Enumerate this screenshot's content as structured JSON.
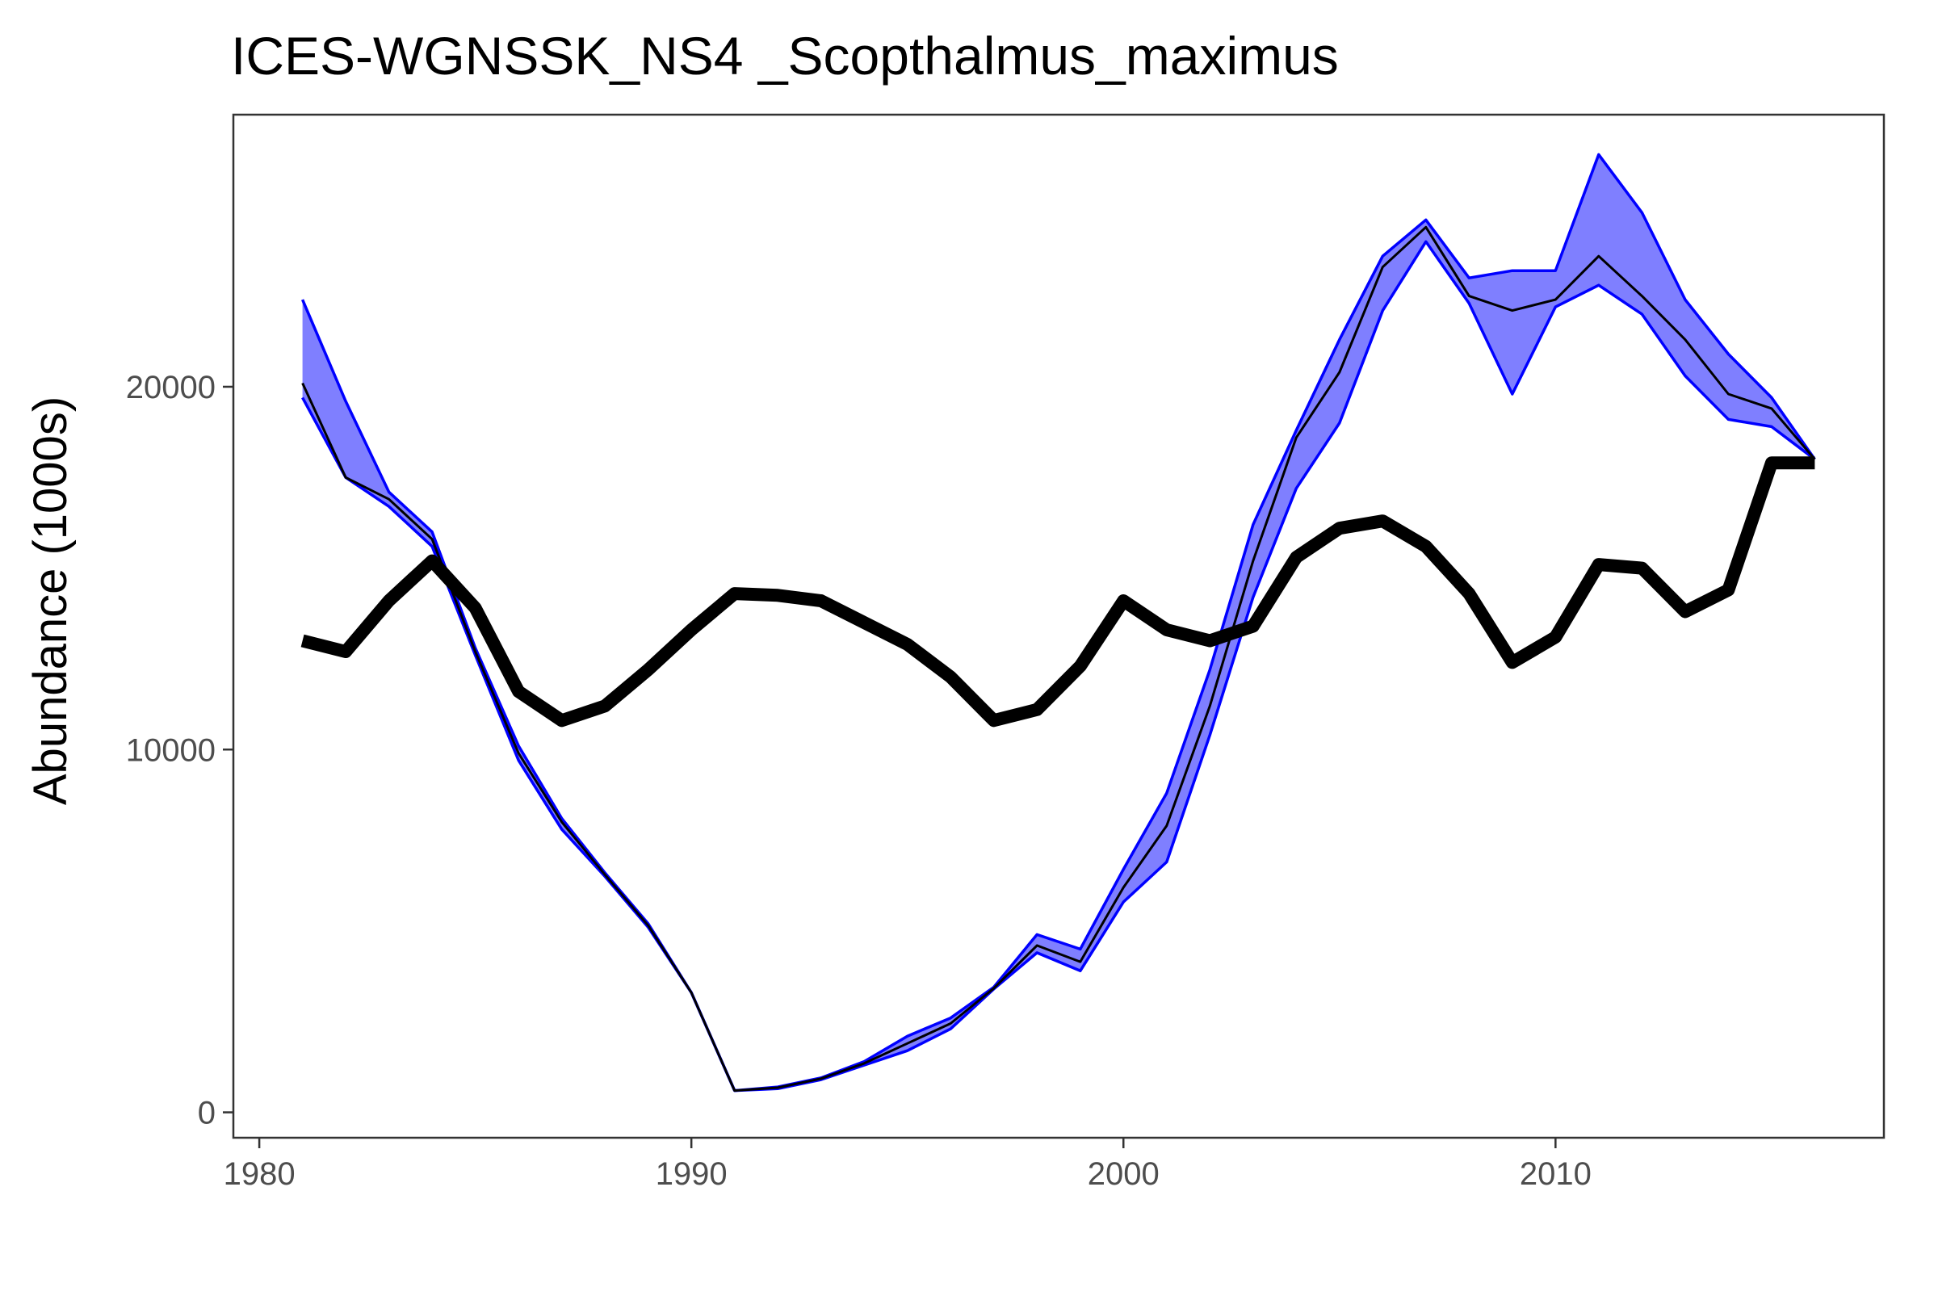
{
  "chart_data": {
    "type": "line",
    "title": "ICES-WGNSSK_NS4 _Scopthalmus_maximus",
    "xlabel": "",
    "ylabel": "Abundance (1000s)",
    "xlim": [
      1979.4,
      2017.6
    ],
    "ylim": [
      -700,
      27500
    ],
    "x_ticks": [
      "1980",
      "1990",
      "2000",
      "2010"
    ],
    "y_ticks": [
      "0",
      "10000",
      "20000"
    ],
    "grid": false,
    "legend": "none",
    "x": [
      1981,
      1982,
      1983,
      1984,
      1985,
      1986,
      1987,
      1988,
      1989,
      1990,
      1991,
      1992,
      1993,
      1994,
      1995,
      1996,
      1997,
      1998,
      1999,
      2000,
      2001,
      2002,
      2003,
      2004,
      2005,
      2006,
      2007,
      2008,
      2009,
      2010,
      2011,
      2012,
      2013,
      2014,
      2015,
      2016
    ],
    "band": {
      "fill_color": "#7f7fff",
      "edge_color": "#0000ff",
      "upper": [
        22400,
        19600,
        17100,
        16000,
        12800,
        10100,
        8100,
        6600,
        5200,
        3300,
        600,
        700,
        950,
        1400,
        2100,
        2600,
        3450,
        4900,
        4500,
        6700,
        8800,
        12200,
        16200,
        18800,
        21300,
        23600,
        24600,
        23000,
        23200,
        23200,
        26400,
        24800,
        22400,
        20900,
        19700,
        18000
      ],
      "lower": [
        19700,
        17500,
        16700,
        15600,
        12600,
        9700,
        7800,
        6500,
        5100,
        3300,
        600,
        650,
        900,
        1300,
        1700,
        2300,
        3400,
        4400,
        3900,
        5800,
        6900,
        10400,
        14200,
        17200,
        19000,
        22100,
        24000,
        22300,
        19800,
        22200,
        22800,
        22000,
        20300,
        19100,
        18900,
        18000
      ]
    },
    "series": [
      {
        "color": "#000000",
        "values": [
          20100,
          17500,
          16900,
          15800,
          12700,
          9900,
          8000,
          6550,
          5150,
          3300,
          600,
          680,
          930,
          1350,
          1900,
          2450,
          3420,
          4600,
          4150,
          6200,
          7900,
          11200,
          15200,
          18600,
          20400,
          23300,
          24400,
          22500,
          22100,
          22400,
          23600,
          22500,
          21300,
          19800,
          19400,
          18000
        ]
      },
      {
        "color": "#000000",
        "values": [
          13000,
          12700,
          14100,
          15200,
          13900,
          11600,
          10800,
          11200,
          12200,
          13300,
          14300,
          14250,
          14100,
          13500,
          12900,
          12000,
          10800,
          11100,
          12300,
          14100,
          13300,
          13000,
          13400,
          15300,
          16100,
          16300,
          15600,
          14300,
          12400,
          13100,
          15100,
          15000,
          13800,
          14400,
          17900,
          17900
        ]
      }
    ]
  }
}
